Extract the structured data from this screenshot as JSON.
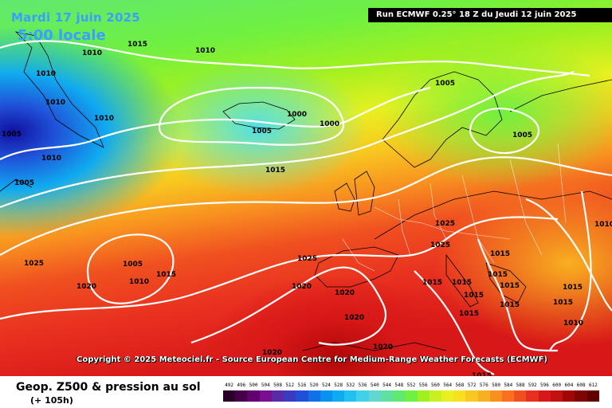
{
  "header": {
    "date": "Mardi 17 juin 2025",
    "time": "5:00 locale",
    "run": "Run ECMWF 0.25° 18 Z du Jeudi 12 juin 2025"
  },
  "copyright": "Copyright © 2025 Meteociel.fr - Source European Centre for Medium-Range Weather Forecasts (ECMWF)",
  "footer": {
    "title": "Geop. Z500 & pression au sol",
    "lead": "(+ 105h)"
  },
  "legend": {
    "values": [
      "492",
      "496",
      "500",
      "504",
      "508",
      "512",
      "516",
      "520",
      "524",
      "528",
      "532",
      "536",
      "540",
      "544",
      "548",
      "552",
      "556",
      "560",
      "564",
      "568",
      "572",
      "576",
      "580",
      "584",
      "588",
      "592",
      "596",
      "600",
      "604",
      "608",
      "612"
    ],
    "colors": [
      "#2a0026",
      "#46004a",
      "#620070",
      "#7a1090",
      "#5a2aa8",
      "#3a3cc0",
      "#2050d8",
      "#1070e8",
      "#0a90f0",
      "#10aaf0",
      "#20c0f0",
      "#40d0e8",
      "#60d8d0",
      "#60e0a0",
      "#60e870",
      "#70f040",
      "#a0f020",
      "#c8f020",
      "#e8f020",
      "#f8e020",
      "#f8c820",
      "#f8b020",
      "#f89020",
      "#f87020",
      "#f05020",
      "#e83020",
      "#d81818",
      "#c01010",
      "#a00808",
      "#800404",
      "#600000"
    ]
  },
  "isobars": [
    {
      "text": "1015"
    },
    {
      "text": "1010"
    },
    {
      "text": "1010"
    },
    {
      "text": "1010"
    },
    {
      "text": "1010"
    },
    {
      "text": "1010"
    },
    {
      "text": "1005"
    },
    {
      "text": "1010"
    },
    {
      "text": "1005"
    },
    {
      "text": "1025"
    },
    {
      "text": "1005"
    },
    {
      "text": "1010"
    },
    {
      "text": "1015"
    },
    {
      "text": "1020"
    },
    {
      "text": "1000"
    },
    {
      "text": "1005"
    },
    {
      "text": "1000"
    },
    {
      "text": "1015"
    },
    {
      "text": "1005"
    },
    {
      "text": "1005"
    },
    {
      "text": "1025"
    },
    {
      "text": "1025"
    },
    {
      "text": "1025"
    },
    {
      "text": "1020"
    },
    {
      "text": "1020"
    },
    {
      "text": "1020"
    },
    {
      "text": "1020"
    },
    {
      "text": "1020"
    },
    {
      "text": "1015"
    },
    {
      "text": "1015"
    },
    {
      "text": "1015"
    },
    {
      "text": "1015"
    },
    {
      "text": "1015"
    },
    {
      "text": "1015"
    },
    {
      "text": "1015"
    },
    {
      "text": "1015"
    },
    {
      "text": "1015"
    },
    {
      "text": "1010"
    },
    {
      "text": "1010"
    },
    {
      "text": "1015"
    },
    {
      "text": "1015"
    }
  ]
}
